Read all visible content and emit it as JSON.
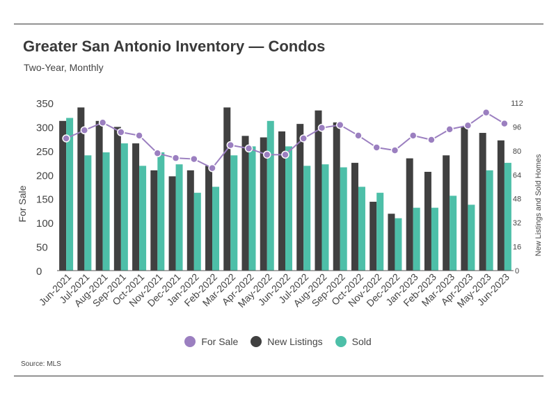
{
  "title": "Greater San Antonio Inventory — Condos",
  "subtitle": "Two-Year, Monthly",
  "source": "Source: MLS",
  "colors": {
    "for_sale": "#9b7fc0",
    "new_listings": "#404040",
    "sold": "#4dbfa8"
  },
  "legend": [
    {
      "label": "For Sale",
      "color": "#9b7fc0"
    },
    {
      "label": "New Listings",
      "color": "#404040"
    },
    {
      "label": "Sold",
      "color": "#4dbfa8"
    }
  ],
  "chart_data": {
    "type": "bar",
    "combo": "bar+line",
    "grid": false,
    "legend_position": "bottom",
    "ylabel": "For Sale",
    "y2label": "New Listings and Sold Homes",
    "ylim": [
      0,
      350
    ],
    "yticks": [
      0,
      50,
      100,
      150,
      200,
      250,
      300,
      350
    ],
    "y2lim": [
      0,
      112
    ],
    "y2ticks": [
      0,
      16,
      32,
      48,
      64,
      80,
      96,
      112
    ],
    "categories": [
      "Jun-2021",
      "Jul-2021",
      "Aug-2021",
      "Sep-2021",
      "Oct-2021",
      "Nov-2021",
      "Dec-2021",
      "Jan-2022",
      "Feb-2022",
      "Mar-2022",
      "Apr-2022",
      "May-2022",
      "Jun-2022",
      "Jul-2022",
      "Aug-2022",
      "Sep-2022",
      "Oct-2022",
      "Nov-2022",
      "Dec-2022",
      "Jan-2023",
      "Feb-2023",
      "Mar-2023",
      "Apr-2023",
      "May-2023",
      "Jun-2023"
    ],
    "series": [
      {
        "name": "For Sale",
        "type": "line",
        "axis": "left",
        "values": [
          276,
          293,
          309,
          289,
          282,
          245,
          235,
          233,
          214,
          262,
          255,
          242,
          242,
          276,
          298,
          304,
          282,
          257,
          251,
          282,
          273,
          295,
          303,
          330,
          307
        ]
      },
      {
        "name": "New Listings",
        "type": "bar",
        "axis": "right",
        "values": [
          100,
          109,
          100,
          96,
          85,
          67,
          63,
          67,
          70,
          109,
          90,
          89,
          93,
          98,
          107,
          99,
          72,
          46,
          38,
          75,
          66,
          77,
          96,
          92,
          87
        ]
      },
      {
        "name": "Sold",
        "type": "bar",
        "axis": "right",
        "values": [
          102,
          77,
          79,
          85,
          70,
          79,
          71,
          52,
          56,
          77,
          83,
          100,
          83,
          70,
          71,
          69,
          56,
          52,
          35,
          42,
          42,
          50,
          44,
          67,
          72
        ]
      }
    ]
  }
}
